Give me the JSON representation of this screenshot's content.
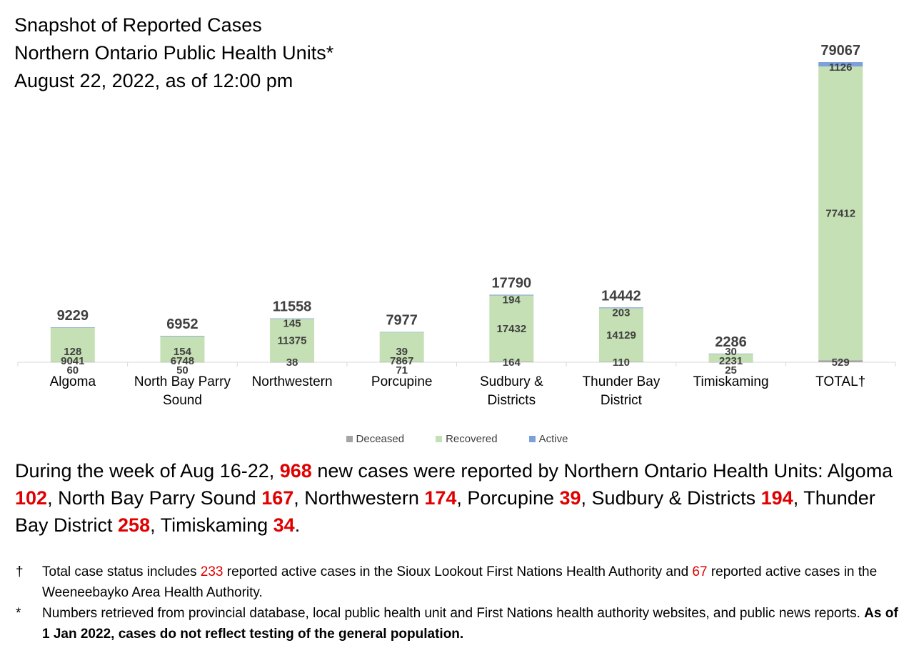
{
  "title": {
    "line1": "Snapshot of Reported Cases",
    "line2": "Northern Ontario Public Health Units*",
    "line3": "August 22, 2022, as of 12:00 pm"
  },
  "colors": {
    "deceased": "#a5a5a5",
    "recovered": "#c5e0b4",
    "active": "#7da0d8",
    "highlight": "#e00000"
  },
  "chart_data": {
    "type": "bar",
    "stacked": true,
    "categories": [
      "Algoma",
      "North Bay Parry Sound",
      "Northwestern",
      "Porcupine",
      "Sudbury & Districts",
      "Thunder Bay District",
      "Timiskaming",
      "TOTAL†"
    ],
    "category_lines": [
      [
        "Algoma"
      ],
      [
        "North Bay Parry",
        "Sound"
      ],
      [
        "Northwestern"
      ],
      [
        "Porcupine"
      ],
      [
        "Sudbury &",
        "Districts"
      ],
      [
        "Thunder Bay",
        "District"
      ],
      [
        "Timiskaming"
      ],
      [
        "TOTAL†"
      ]
    ],
    "series": [
      {
        "name": "Deceased",
        "values": [
          60,
          50,
          38,
          71,
          164,
          110,
          25,
          529
        ]
      },
      {
        "name": "Recovered",
        "values": [
          9041,
          6748,
          11375,
          7867,
          17432,
          14129,
          2231,
          77412
        ]
      },
      {
        "name": "Active",
        "values": [
          128,
          154,
          145,
          39,
          194,
          203,
          30,
          1126
        ]
      }
    ],
    "totals": [
      9229,
      6952,
      11558,
      7977,
      17790,
      14442,
      2286,
      79067
    ],
    "legend_position": "bottom",
    "grid": false
  },
  "summary": {
    "p1": "During the week of Aug 16-22, ",
    "total_new": "968",
    "p2": " new cases were reported by Northern Ontario Health Units: Algoma ",
    "algoma": "102",
    "p3": ", North Bay Parry Sound ",
    "nbps": "167",
    "p4": ", Northwestern ",
    "northwestern": "174",
    "p5": ", Porcupine ",
    "porcupine": "39",
    "p6": ", Sudbury & Districts ",
    "sudbury": "194",
    "p7": ", Thunder Bay District ",
    "thunder_bay": "258",
    "p8": ", Timiskaming ",
    "timiskaming": "34",
    "p9": "."
  },
  "notes": {
    "dagger_mark": "†",
    "dagger_p1": "Total case status includes ",
    "dagger_sioux": "233",
    "dagger_p2": " reported active cases in the Sioux Lookout First Nations Health Authority and ",
    "dagger_ween": "67",
    "dagger_p3": " reported active cases in the Weeneebayko Area Health Authority.",
    "star_mark": "*",
    "star_p1": "Numbers retrieved from provincial database, local public health unit and First Nations health authority websites, and public news reports. ",
    "star_bold": "As of 1 Jan 2022, cases do not reflect testing of the general population."
  }
}
